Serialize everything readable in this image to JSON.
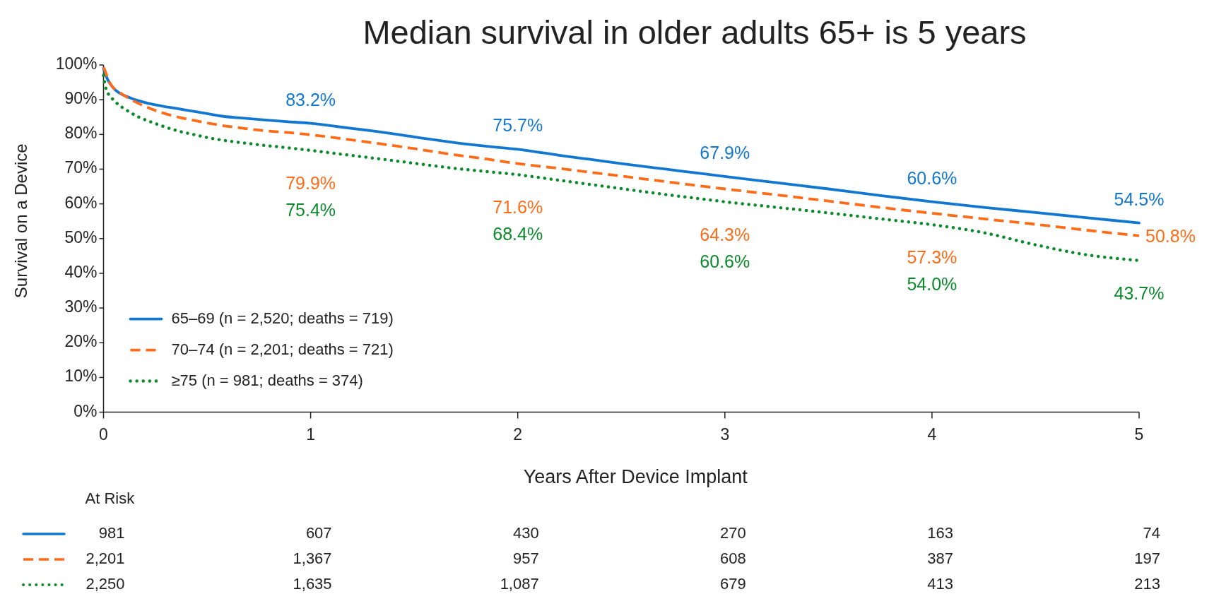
{
  "chart_data": [
    {
      "type": "line",
      "title": "Median survival in older adults 65+ is 5 years",
      "xlabel": "Years After Device Implant",
      "ylabel": "Survival on a Device",
      "xlim": [
        0,
        5
      ],
      "ylim": [
        0,
        100
      ],
      "xticks": [
        0,
        1,
        2,
        3,
        4,
        5
      ],
      "yticks": [
        {
          "value": 0,
          "label": "0%"
        },
        {
          "value": 10,
          "label": "10%"
        },
        {
          "value": 20,
          "label": "20%"
        },
        {
          "value": 30,
          "label": "30%"
        },
        {
          "value": 40,
          "label": "40%"
        },
        {
          "value": 50,
          "label": "50%"
        },
        {
          "value": 60,
          "label": "60%"
        },
        {
          "value": 70,
          "label": "70%"
        },
        {
          "value": 80,
          "label": "80%"
        },
        {
          "value": 90,
          "label": "90%"
        },
        {
          "value": 100,
          "label": "100%"
        }
      ],
      "legend": "bottom left",
      "x": [
        0,
        0.01,
        0.02,
        0.035,
        0.05,
        0.07,
        0.09,
        0.13,
        0.17,
        0.22,
        0.28,
        0.36,
        0.44,
        0.51,
        0.58,
        0.67,
        0.77,
        0.88,
        1,
        1.15,
        1.3,
        1.5,
        1.7,
        1.85,
        2,
        2.2,
        2.35,
        2.5,
        2.7,
        2.85,
        3,
        3.25,
        3.5,
        3.75,
        4,
        4.25,
        4.5,
        4.75,
        5
      ],
      "series": [
        {
          "name": "65–69 (n = 2,520; deaths = 719)",
          "color": "#1177d1",
          "line_style": "solid",
          "values": [
            99.0,
            97.2,
            95.8,
            94.3,
            93.2,
            92.2,
            91.5,
            90.5,
            89.7,
            88.9,
            88.2,
            87.4,
            86.6,
            85.9,
            85.2,
            84.7,
            84.2,
            83.7,
            83.2,
            82.1,
            81.0,
            79.3,
            77.6,
            76.6,
            75.7,
            74.0,
            72.8,
            71.6,
            70.1,
            69.0,
            67.9,
            66.1,
            64.3,
            62.4,
            60.6,
            59.0,
            57.5,
            56.0,
            54.5
          ],
          "value_labels": [
            null,
            null,
            null,
            null,
            null,
            null,
            null,
            null,
            null,
            null,
            null,
            null,
            null,
            null,
            null,
            null,
            null,
            null,
            "83.2%",
            null,
            null,
            null,
            null,
            null,
            "75.7%",
            null,
            null,
            null,
            null,
            null,
            "67.9%",
            null,
            null,
            null,
            "60.6%",
            null,
            null,
            null,
            "54.5%"
          ]
        },
        {
          "name": "70–74 (n = 2,201; deaths = 721)",
          "color": "#ff6b17",
          "line_style": "dashed",
          "values": [
            99.4,
            98.0,
            96.2,
            94.4,
            93.3,
            92.4,
            91.6,
            90.1,
            88.9,
            87.6,
            86.3,
            85.0,
            84.0,
            83.2,
            82.5,
            81.8,
            81.1,
            80.6,
            79.9,
            78.8,
            77.6,
            75.9,
            74.1,
            72.9,
            71.6,
            70.2,
            69.1,
            68.0,
            66.5,
            65.4,
            64.3,
            62.6,
            60.8,
            59.0,
            57.3,
            55.7,
            54.1,
            52.4,
            50.8
          ],
          "value_labels": [
            null,
            null,
            null,
            null,
            null,
            null,
            null,
            null,
            null,
            null,
            null,
            null,
            null,
            null,
            null,
            null,
            null,
            null,
            "79.9%",
            null,
            null,
            null,
            null,
            null,
            "71.6%",
            null,
            null,
            null,
            null,
            null,
            "64.3%",
            null,
            null,
            null,
            "57.3%",
            null,
            null,
            null,
            "50.8%"
          ]
        },
        {
          "name": "≥75 (n = 981; deaths = 374)",
          "color": "#0b8a2b",
          "line_style": "dotted",
          "values": [
            97.0,
            93.6,
            92.0,
            90.8,
            89.8,
            88.7,
            87.8,
            86.3,
            85.0,
            83.8,
            82.5,
            81.0,
            79.9,
            79.0,
            78.3,
            77.6,
            76.9,
            76.2,
            75.4,
            74.3,
            73.2,
            71.7,
            70.2,
            69.3,
            68.4,
            66.8,
            65.6,
            64.4,
            62.8,
            61.7,
            60.6,
            59.0,
            57.4,
            55.7,
            54.0,
            51.7,
            48.2,
            45.3,
            43.7
          ],
          "value_labels": [
            null,
            null,
            null,
            null,
            null,
            null,
            null,
            null,
            null,
            null,
            null,
            null,
            null,
            null,
            null,
            null,
            null,
            null,
            "75.4%",
            null,
            null,
            null,
            null,
            null,
            "68.4%",
            null,
            null,
            null,
            null,
            null,
            "60.6%",
            null,
            null,
            null,
            "54.0%",
            null,
            null,
            null,
            "43.7%"
          ]
        }
      ]
    },
    {
      "type": "other",
      "title": "At Risk",
      "annotations": [
        "981",
        "607",
        "430",
        "270",
        "163",
        "74",
        "2,201",
        "1,367",
        "957",
        "608",
        "387",
        "197",
        "2,250",
        "1,635",
        "1,087",
        "679",
        "413",
        "213"
      ]
    }
  ]
}
